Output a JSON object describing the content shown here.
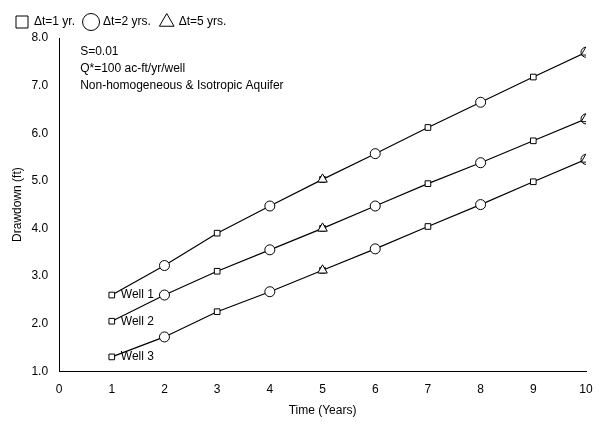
{
  "chart_data": {
    "type": "line",
    "xlabel": "Time (Years)",
    "ylabel": "Drawdown (ft)",
    "x": [
      1,
      2,
      3,
      4,
      5,
      6,
      7,
      8,
      9,
      10
    ],
    "xlim": [
      0,
      10
    ],
    "ylim": [
      1.0,
      8.0
    ],
    "xticks": [
      0,
      1,
      2,
      3,
      4,
      5,
      6,
      7,
      8,
      9,
      10
    ],
    "yticks": [
      {
        "value": 1.0,
        "label": "1.0"
      },
      {
        "value": 2.0,
        "label": "2.0"
      },
      {
        "value": 3.0,
        "label": "3.0"
      },
      {
        "value": 4.0,
        "label": "4.0"
      },
      {
        "value": 5.0,
        "label": "5.0"
      },
      {
        "value": 6.0,
        "label": "6.0"
      },
      {
        "value": 7.0,
        "label": "7.0"
      },
      {
        "value": 8.0,
        "label": "8.0"
      }
    ],
    "grid": false,
    "legend": "upper left",
    "color": "#000000",
    "annotations": [
      "S=0.01",
      "Q*=100 ac-ft/yr/well",
      "Non-homogeneous & Isotropic Aquifer"
    ],
    "series": [
      {
        "name": "Well 1",
        "type": "line",
        "values": [
          2.6,
          3.22,
          3.9,
          4.47,
          5.03,
          5.57,
          6.12,
          6.65,
          7.18,
          7.7
        ]
      },
      {
        "name": "Well 2",
        "type": "line",
        "values": [
          2.05,
          2.6,
          3.1,
          3.55,
          4.0,
          4.47,
          4.94,
          5.38,
          5.84,
          6.3
        ]
      },
      {
        "name": "Well 3",
        "type": "line",
        "values": [
          1.3,
          1.72,
          2.25,
          2.67,
          3.12,
          3.57,
          4.04,
          4.5,
          4.98,
          5.45
        ]
      },
      {
        "name": "Δt=1 yr.",
        "type": "scatter",
        "marker": "square",
        "points": [
          [
            1,
            2.6
          ],
          [
            2,
            3.22
          ],
          [
            3,
            3.9
          ],
          [
            4,
            4.47
          ],
          [
            5,
            5.03
          ],
          [
            6,
            5.57
          ],
          [
            7,
            6.12
          ],
          [
            8,
            6.65
          ],
          [
            9,
            7.18
          ],
          [
            10,
            7.7
          ],
          [
            1,
            2.05
          ],
          [
            2,
            2.6
          ],
          [
            3,
            3.1
          ],
          [
            4,
            3.55
          ],
          [
            5,
            4.0
          ],
          [
            6,
            4.47
          ],
          [
            7,
            4.94
          ],
          [
            8,
            5.38
          ],
          [
            9,
            5.84
          ],
          [
            10,
            6.3
          ],
          [
            1,
            1.3
          ],
          [
            2,
            1.72
          ],
          [
            3,
            2.25
          ],
          [
            4,
            2.67
          ],
          [
            5,
            3.12
          ],
          [
            6,
            3.57
          ],
          [
            7,
            4.04
          ],
          [
            8,
            4.5
          ],
          [
            9,
            4.98
          ],
          [
            10,
            5.45
          ]
        ]
      },
      {
        "name": "Δt=2 yrs.",
        "type": "scatter",
        "marker": "circle",
        "points": [
          [
            2,
            3.22
          ],
          [
            4,
            4.47
          ],
          [
            6,
            5.57
          ],
          [
            8,
            6.65
          ],
          [
            10,
            7.7
          ],
          [
            2,
            2.6
          ],
          [
            4,
            3.55
          ],
          [
            6,
            4.47
          ],
          [
            8,
            5.38
          ],
          [
            10,
            6.3
          ],
          [
            2,
            1.72
          ],
          [
            4,
            2.67
          ],
          [
            6,
            3.57
          ],
          [
            8,
            4.5
          ],
          [
            10,
            5.45
          ]
        ]
      },
      {
        "name": "Δt=5 yrs.",
        "type": "scatter",
        "marker": "triangle",
        "points": [
          [
            5,
            5.03
          ],
          [
            10,
            7.7
          ],
          [
            5,
            4.0
          ],
          [
            10,
            6.3
          ],
          [
            5,
            3.12
          ],
          [
            10,
            5.45
          ]
        ]
      }
    ]
  }
}
